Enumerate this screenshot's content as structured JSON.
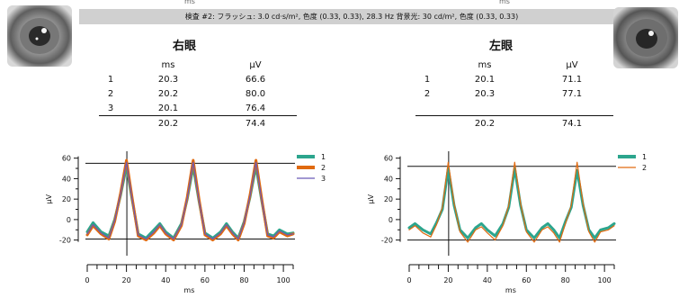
{
  "top_ms_left": "ms",
  "top_ms_right": "ms",
  "header_text": "検査 #2:  フラッシュ: 3.0 cd·s/m², 色度 (0.33, 0.33), 28.3 Hz   背景光: 30 cd/m², 色度 (0.33, 0.33)",
  "right_eye": {
    "title": "右眼",
    "col_ms": "ms",
    "col_uv": "μV",
    "rows": [
      {
        "n": "1",
        "ms": "20.3",
        "uv": "66.6"
      },
      {
        "n": "2",
        "ms": "20.2",
        "uv": "80.0"
      },
      {
        "n": "3",
        "ms": "20.1",
        "uv": "76.4"
      }
    ],
    "avg": {
      "ms": "20.2",
      "uv": "74.4"
    }
  },
  "left_eye": {
    "title": "左眼",
    "col_ms": "ms",
    "col_uv": "μV",
    "rows": [
      {
        "n": "1",
        "ms": "20.1",
        "uv": "71.1"
      },
      {
        "n": "2",
        "ms": "20.3",
        "uv": "77.1"
      }
    ],
    "avg": {
      "ms": "20.2",
      "uv": "74.1"
    }
  },
  "chart_data": [
    {
      "type": "line",
      "title": "",
      "xlabel": "ms",
      "ylabel": "μV",
      "xlim": [
        0,
        105
      ],
      "ylim": [
        -30,
        65
      ],
      "xticks": [
        0,
        20,
        40,
        60,
        80,
        100
      ],
      "yticks": [
        -20,
        0,
        20,
        40,
        60
      ],
      "hlines": [
        55,
        -19
      ],
      "vline": 20.2,
      "legend": "top-right",
      "series": [
        {
          "name": "1",
          "color": "#2ca58d",
          "width": 3,
          "x": [
            0,
            3,
            7,
            11,
            14,
            17,
            20,
            23,
            26,
            30,
            34,
            37,
            40,
            44,
            48,
            51,
            54,
            57,
            60,
            64,
            68,
            71,
            74,
            77,
            80,
            83,
            86,
            89,
            92,
            95,
            98,
            102,
            105
          ],
          "y": [
            -12,
            -3,
            -12,
            -16,
            0,
            24,
            52,
            18,
            -14,
            -18,
            -10,
            -4,
            -12,
            -18,
            -4,
            20,
            52,
            18,
            -13,
            -18,
            -12,
            -4,
            -12,
            -18,
            -2,
            22,
            52,
            18,
            -14,
            -16,
            -10,
            -14,
            -13
          ]
        },
        {
          "name": "2",
          "color": "#e06a10",
          "width": 3,
          "x": [
            0,
            3,
            7,
            11,
            14,
            17,
            20,
            23,
            26,
            30,
            34,
            37,
            40,
            44,
            48,
            51,
            54,
            57,
            60,
            64,
            68,
            71,
            74,
            77,
            80,
            83,
            86,
            89,
            92,
            95,
            98,
            102,
            105
          ],
          "y": [
            -15,
            -6,
            -14,
            -19,
            -2,
            26,
            58,
            20,
            -16,
            -20,
            -13,
            -6,
            -14,
            -20,
            -6,
            22,
            58,
            20,
            -15,
            -20,
            -14,
            -6,
            -14,
            -20,
            -4,
            24,
            58,
            20,
            -16,
            -18,
            -12,
            -16,
            -14
          ]
        },
        {
          "name": "3",
          "color": "#6a5ab8",
          "width": 1.2,
          "x": [
            0,
            3,
            7,
            11,
            14,
            17,
            20,
            23,
            26,
            30,
            34,
            37,
            40,
            44,
            48,
            51,
            54,
            57,
            60,
            64,
            68,
            71,
            74,
            77,
            80,
            83,
            86,
            89,
            92,
            95,
            98,
            102,
            105
          ],
          "y": [
            -14,
            -5,
            -13,
            -18,
            -1,
            25,
            56,
            19,
            -15,
            -19,
            -12,
            -5,
            -13,
            -19,
            -5,
            21,
            56,
            19,
            -14,
            -19,
            -13,
            -5,
            -13,
            -19,
            -3,
            23,
            56,
            19,
            -15,
            -17,
            -11,
            -15,
            -14
          ]
        }
      ]
    },
    {
      "type": "line",
      "title": "",
      "xlabel": "ms",
      "ylabel": "μV",
      "xlim": [
        0,
        105
      ],
      "ylim": [
        -30,
        65
      ],
      "xticks": [
        0,
        20,
        40,
        60,
        80,
        100
      ],
      "yticks": [
        -20,
        0,
        20,
        40,
        60
      ],
      "hlines": [
        52,
        -20
      ],
      "vline": 20.2,
      "legend": "top-right",
      "series": [
        {
          "name": "1",
          "color": "#2ca58d",
          "width": 3,
          "x": [
            0,
            3,
            7,
            11,
            14,
            17,
            20,
            23,
            26,
            30,
            34,
            37,
            40,
            44,
            48,
            51,
            54,
            57,
            60,
            64,
            68,
            71,
            74,
            77,
            80,
            83,
            86,
            89,
            92,
            95,
            98,
            102,
            105
          ],
          "y": [
            -8,
            -4,
            -10,
            -14,
            -3,
            10,
            50,
            14,
            -10,
            -18,
            -8,
            -4,
            -10,
            -16,
            -4,
            12,
            50,
            14,
            -10,
            -18,
            -8,
            -4,
            -10,
            -18,
            -2,
            12,
            48,
            14,
            -10,
            -18,
            -10,
            -8,
            -4
          ]
        },
        {
          "name": "2",
          "color": "#e06a10",
          "width": 1.2,
          "x": [
            0,
            3,
            7,
            11,
            14,
            17,
            20,
            23,
            26,
            30,
            34,
            37,
            40,
            44,
            48,
            51,
            54,
            57,
            60,
            64,
            68,
            71,
            74,
            77,
            80,
            83,
            86,
            89,
            92,
            95,
            98,
            102,
            105
          ],
          "y": [
            -10,
            -6,
            -13,
            -17,
            -5,
            12,
            56,
            16,
            -12,
            -22,
            -10,
            -7,
            -13,
            -20,
            -6,
            14,
            56,
            16,
            -12,
            -22,
            -10,
            -7,
            -13,
            -22,
            -4,
            14,
            56,
            16,
            -12,
            -22,
            -12,
            -10,
            -6
          ]
        }
      ]
    }
  ]
}
